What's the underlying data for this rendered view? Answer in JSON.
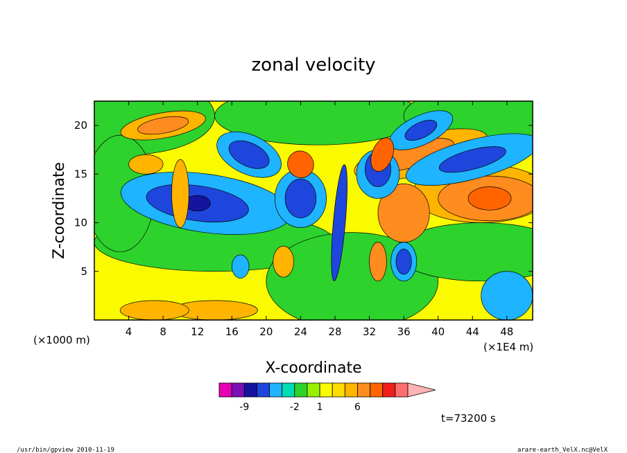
{
  "chart_data": {
    "type": "heatmap",
    "title": "zonal velocity",
    "xlabel": "X-coordinate",
    "ylabel": "Z-coordinate",
    "x_unit": "(×1000 m)",
    "x_unit_right": "(×1E4 m)",
    "xticks": [
      "4",
      "8",
      "12",
      "16",
      "20",
      "24",
      "28",
      "32",
      "36",
      "40",
      "44",
      "48"
    ],
    "yticks": [
      "5",
      "10",
      "15",
      "20"
    ],
    "xlim": [
      0,
      51
    ],
    "ylim": [
      0,
      22.5
    ],
    "colorbar": {
      "colors": [
        "#e600b4",
        "#7d10b4",
        "#1414a0",
        "#1e46dc",
        "#1eb4ff",
        "#00dcb4",
        "#2dd22d",
        "#96f000",
        "#fafa00",
        "#ffdc00",
        "#ffb400",
        "#ff8c1e",
        "#ff6400",
        "#f01e1e",
        "#ff6e6e",
        "#ffb4b4"
      ],
      "labels": [
        "-9",
        "-2",
        "1",
        "6"
      ]
    },
    "time_label": "t=73200 s"
  },
  "footer": {
    "left": "/usr/bin/gpview  2010-11-19",
    "right": "arare-earth_VelX.nc@VelX"
  }
}
